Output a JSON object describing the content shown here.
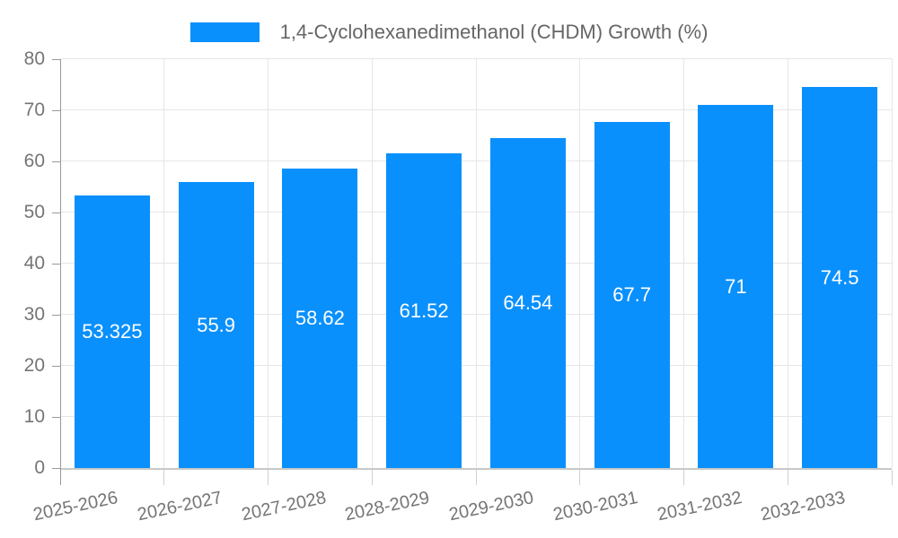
{
  "legend": {
    "label": "1,4-Cyclohexanedimethanol (CHDM) Growth (%)"
  },
  "chart_data": {
    "type": "bar",
    "title": "1,4-Cyclohexanedimethanol (CHDM) Growth (%)",
    "series_name": "1,4-Cyclohexanedimethanol (CHDM) Growth (%)",
    "categories": [
      "2025-2026",
      "2026-2027",
      "2027-2028",
      "2028-2029",
      "2029-2030",
      "2030-2031",
      "2031-2032",
      "2032-2033"
    ],
    "values": [
      53.325,
      55.9,
      58.62,
      61.52,
      64.54,
      67.7,
      71,
      74.5
    ],
    "value_labels": [
      "53.325",
      "55.9",
      "58.62",
      "61.52",
      "64.54",
      "67.7",
      "71",
      "74.5"
    ],
    "xlabel": "",
    "ylabel": "",
    "ylim": [
      0,
      80
    ],
    "ytick_step": 10,
    "yticks": [
      0,
      10,
      20,
      30,
      40,
      50,
      60,
      70,
      80
    ],
    "grid": true,
    "legend_position": "top",
    "colors": {
      "bar": "#0a90fc",
      "value_label": "#ffffff",
      "axis_label": "#757575",
      "legend_text": "#666666",
      "gridline": "#e6e6e6",
      "axis_line": "#999999",
      "zero_line": "#c9c9c9",
      "category_tick": "#cfcfcf"
    }
  }
}
